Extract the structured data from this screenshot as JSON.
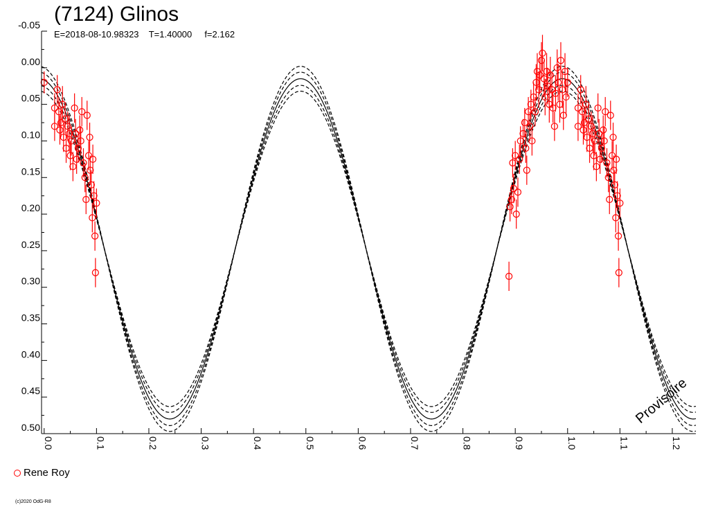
{
  "title": "(7124) Glinos",
  "subtitle": "E=2018-08-10.98323    T=1.40000     f=2.162",
  "watermark": "Provisoire",
  "copyright": "(c)2020 OdG-R8",
  "chart_data": {
    "type": "scatter",
    "title": "(7124) Glinos",
    "x_range": [
      -0.005,
      1.245
    ],
    "y_range": [
      -0.05,
      0.5
    ],
    "y_inverted": true,
    "x_ticks": [
      "0.0",
      "0.1",
      "0.2",
      "0.3",
      "0.4",
      "0.5",
      "0.6",
      "0.7",
      "0.8",
      "0.9",
      "1.0",
      "1.1",
      "1.2"
    ],
    "y_ticks": [
      "-0.05",
      "0.00",
      "0.05",
      "0.10",
      "0.15",
      "0.20",
      "0.25",
      "0.30",
      "0.35",
      "0.40",
      "0.45",
      "0.50"
    ],
    "grid": false,
    "legend_position": "bottom-left",
    "model_curve": {
      "style": "solid and dashed black",
      "harmonics": 2,
      "maximum_magnitude": 0.015,
      "minimum_magnitude": 0.48,
      "minimum_phases": [
        0.24,
        0.74
      ],
      "maximum_phases": [
        0.49,
        0.99
      ],
      "dashed_offsets": [
        0.0,
        0.018,
        0.034
      ]
    },
    "series": [
      {
        "name": "Rene Roy",
        "color": "#ff0000",
        "marker": "open-circle",
        "points": [
          {
            "x": 0.0,
            "y": 0.02,
            "e": 0.015
          },
          {
            "x": 0.02,
            "y": 0.08,
            "e": 0.02
          },
          {
            "x": 0.02,
            "y": 0.055,
            "e": 0.02
          },
          {
            "x": 0.025,
            "y": 0.03,
            "e": 0.02
          },
          {
            "x": 0.028,
            "y": 0.06,
            "e": 0.02
          },
          {
            "x": 0.03,
            "y": 0.085,
            "e": 0.02
          },
          {
            "x": 0.032,
            "y": 0.075,
            "e": 0.02
          },
          {
            "x": 0.035,
            "y": 0.05,
            "e": 0.025
          },
          {
            "x": 0.037,
            "y": 0.095,
            "e": 0.02
          },
          {
            "x": 0.04,
            "y": 0.07,
            "e": 0.02
          },
          {
            "x": 0.042,
            "y": 0.11,
            "e": 0.02
          },
          {
            "x": 0.045,
            "y": 0.08,
            "e": 0.02
          },
          {
            "x": 0.048,
            "y": 0.09,
            "e": 0.025
          },
          {
            "x": 0.05,
            "y": 0.12,
            "e": 0.02
          },
          {
            "x": 0.052,
            "y": 0.1,
            "e": 0.02
          },
          {
            "x": 0.055,
            "y": 0.135,
            "e": 0.02
          },
          {
            "x": 0.058,
            "y": 0.055,
            "e": 0.02
          },
          {
            "x": 0.06,
            "y": 0.09,
            "e": 0.02
          },
          {
            "x": 0.062,
            "y": 0.125,
            "e": 0.02
          },
          {
            "x": 0.065,
            "y": 0.11,
            "e": 0.02
          },
          {
            "x": 0.068,
            "y": 0.085,
            "e": 0.02
          },
          {
            "x": 0.07,
            "y": 0.1,
            "e": 0.02
          },
          {
            "x": 0.072,
            "y": 0.06,
            "e": 0.02
          },
          {
            "x": 0.075,
            "y": 0.13,
            "e": 0.02
          },
          {
            "x": 0.078,
            "y": 0.15,
            "e": 0.02
          },
          {
            "x": 0.08,
            "y": 0.18,
            "e": 0.02
          },
          {
            "x": 0.082,
            "y": 0.065,
            "e": 0.02
          },
          {
            "x": 0.085,
            "y": 0.12,
            "e": 0.02
          },
          {
            "x": 0.087,
            "y": 0.095,
            "e": 0.02
          },
          {
            "x": 0.088,
            "y": 0.14,
            "e": 0.02
          },
          {
            "x": 0.09,
            "y": 0.16,
            "e": 0.02
          },
          {
            "x": 0.092,
            "y": 0.205,
            "e": 0.02
          },
          {
            "x": 0.093,
            "y": 0.125,
            "e": 0.02
          },
          {
            "x": 0.095,
            "y": 0.175,
            "e": 0.02
          },
          {
            "x": 0.097,
            "y": 0.23,
            "e": 0.02
          },
          {
            "x": 0.098,
            "y": 0.28,
            "e": 0.02
          },
          {
            "x": 0.1,
            "y": 0.185,
            "e": 0.02
          },
          {
            "x": 0.888,
            "y": 0.285,
            "e": 0.02
          },
          {
            "x": 0.89,
            "y": 0.19,
            "e": 0.02
          },
          {
            "x": 0.893,
            "y": 0.18,
            "e": 0.02
          },
          {
            "x": 0.895,
            "y": 0.13,
            "e": 0.02
          },
          {
            "x": 0.897,
            "y": 0.165,
            "e": 0.02
          },
          {
            "x": 0.9,
            "y": 0.12,
            "e": 0.02
          },
          {
            "x": 0.902,
            "y": 0.2,
            "e": 0.02
          },
          {
            "x": 0.905,
            "y": 0.17,
            "e": 0.02
          },
          {
            "x": 0.908,
            "y": 0.125,
            "e": 0.02
          },
          {
            "x": 0.91,
            "y": 0.1,
            "e": 0.02
          },
          {
            "x": 0.915,
            "y": 0.09,
            "e": 0.02
          },
          {
            "x": 0.918,
            "y": 0.075,
            "e": 0.02
          },
          {
            "x": 0.92,
            "y": 0.11,
            "e": 0.02
          },
          {
            "x": 0.922,
            "y": 0.14,
            "e": 0.02
          },
          {
            "x": 0.925,
            "y": 0.06,
            "e": 0.02
          },
          {
            "x": 0.928,
            "y": 0.08,
            "e": 0.02
          },
          {
            "x": 0.93,
            "y": 0.05,
            "e": 0.02
          },
          {
            "x": 0.932,
            "y": 0.1,
            "e": 0.02
          },
          {
            "x": 0.935,
            "y": 0.04,
            "e": 0.02
          },
          {
            "x": 0.938,
            "y": 0.06,
            "e": 0.02
          },
          {
            "x": 0.94,
            "y": 0.02,
            "e": 0.025
          },
          {
            "x": 0.942,
            "y": 0.005,
            "e": 0.025
          },
          {
            "x": 0.945,
            "y": 0.03,
            "e": 0.025
          },
          {
            "x": 0.947,
            "y": 0.01,
            "e": 0.025
          },
          {
            "x": 0.95,
            "y": -0.01,
            "e": 0.025
          },
          {
            "x": 0.952,
            "y": -0.02,
            "e": 0.025
          },
          {
            "x": 0.955,
            "y": 0.015,
            "e": 0.025
          },
          {
            "x": 0.957,
            "y": 0.04,
            "e": 0.025
          },
          {
            "x": 0.96,
            "y": 0.005,
            "e": 0.025
          },
          {
            "x": 0.962,
            "y": 0.025,
            "e": 0.025
          },
          {
            "x": 0.965,
            "y": 0.05,
            "e": 0.025
          },
          {
            "x": 0.967,
            "y": 0.01,
            "e": 0.025
          },
          {
            "x": 0.97,
            "y": 0.03,
            "e": 0.025
          },
          {
            "x": 0.972,
            "y": 0.055,
            "e": 0.02
          },
          {
            "x": 0.975,
            "y": 0.08,
            "e": 0.02
          },
          {
            "x": 0.977,
            "y": 0.035,
            "e": 0.025
          },
          {
            "x": 0.98,
            "y": 0.0,
            "e": 0.025
          },
          {
            "x": 0.982,
            "y": 0.02,
            "e": 0.025
          },
          {
            "x": 0.985,
            "y": 0.05,
            "e": 0.025
          },
          {
            "x": 0.987,
            "y": -0.01,
            "e": 0.025
          },
          {
            "x": 0.99,
            "y": 0.03,
            "e": 0.025
          },
          {
            "x": 0.992,
            "y": 0.065,
            "e": 0.02
          },
          {
            "x": 0.995,
            "y": 0.005,
            "e": 0.025
          },
          {
            "x": 0.997,
            "y": 0.04,
            "e": 0.025
          },
          {
            "x": 1.0,
            "y": 0.02,
            "e": 0.02
          },
          {
            "x": 1.02,
            "y": 0.08,
            "e": 0.02
          },
          {
            "x": 1.02,
            "y": 0.055,
            "e": 0.02
          },
          {
            "x": 1.025,
            "y": 0.03,
            "e": 0.02
          },
          {
            "x": 1.028,
            "y": 0.06,
            "e": 0.02
          },
          {
            "x": 1.03,
            "y": 0.085,
            "e": 0.02
          },
          {
            "x": 1.032,
            "y": 0.075,
            "e": 0.02
          },
          {
            "x": 1.035,
            "y": 0.05,
            "e": 0.025
          },
          {
            "x": 1.037,
            "y": 0.095,
            "e": 0.02
          },
          {
            "x": 1.04,
            "y": 0.07,
            "e": 0.02
          },
          {
            "x": 1.042,
            "y": 0.11,
            "e": 0.02
          },
          {
            "x": 1.045,
            "y": 0.08,
            "e": 0.02
          },
          {
            "x": 1.048,
            "y": 0.09,
            "e": 0.025
          },
          {
            "x": 1.05,
            "y": 0.12,
            "e": 0.02
          },
          {
            "x": 1.052,
            "y": 0.1,
            "e": 0.02
          },
          {
            "x": 1.055,
            "y": 0.135,
            "e": 0.02
          },
          {
            "x": 1.058,
            "y": 0.055,
            "e": 0.02
          },
          {
            "x": 1.06,
            "y": 0.09,
            "e": 0.02
          },
          {
            "x": 1.062,
            "y": 0.125,
            "e": 0.02
          },
          {
            "x": 1.065,
            "y": 0.11,
            "e": 0.02
          },
          {
            "x": 1.068,
            "y": 0.085,
            "e": 0.02
          },
          {
            "x": 1.07,
            "y": 0.1,
            "e": 0.02
          },
          {
            "x": 1.072,
            "y": 0.06,
            "e": 0.02
          },
          {
            "x": 1.075,
            "y": 0.13,
            "e": 0.02
          },
          {
            "x": 1.078,
            "y": 0.15,
            "e": 0.02
          },
          {
            "x": 1.08,
            "y": 0.18,
            "e": 0.02
          },
          {
            "x": 1.082,
            "y": 0.065,
            "e": 0.02
          },
          {
            "x": 1.085,
            "y": 0.12,
            "e": 0.02
          },
          {
            "x": 1.087,
            "y": 0.095,
            "e": 0.02
          },
          {
            "x": 1.088,
            "y": 0.14,
            "e": 0.02
          },
          {
            "x": 1.09,
            "y": 0.16,
            "e": 0.02
          },
          {
            "x": 1.092,
            "y": 0.205,
            "e": 0.02
          },
          {
            "x": 1.093,
            "y": 0.125,
            "e": 0.02
          },
          {
            "x": 1.095,
            "y": 0.175,
            "e": 0.02
          },
          {
            "x": 1.097,
            "y": 0.23,
            "e": 0.02
          },
          {
            "x": 1.098,
            "y": 0.28,
            "e": 0.02
          },
          {
            "x": 1.1,
            "y": 0.185,
            "e": 0.02
          }
        ]
      }
    ]
  },
  "legend": [
    {
      "label": "Rene Roy",
      "color": "#ff0000"
    }
  ]
}
